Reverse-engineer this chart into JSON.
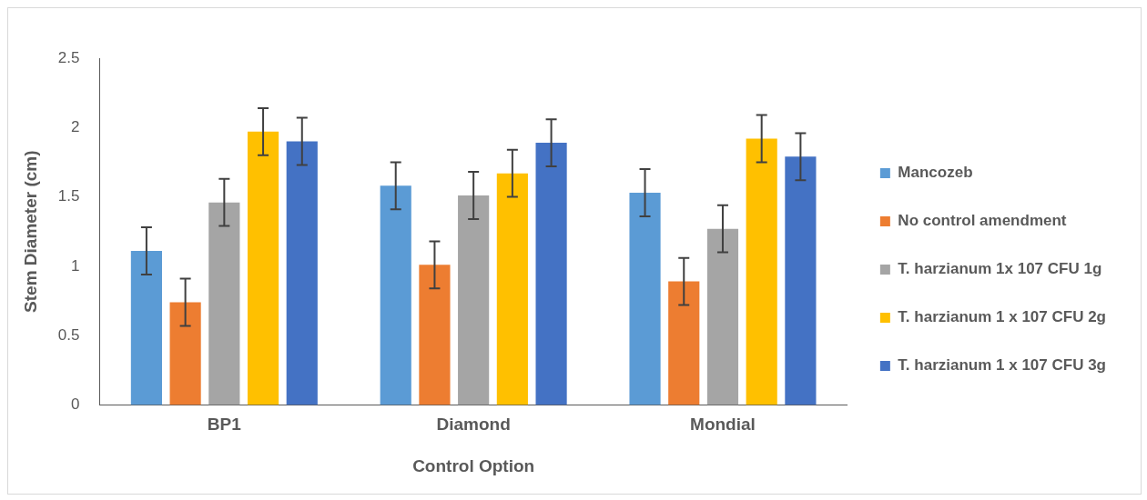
{
  "chart_data": {
    "type": "bar",
    "xlabel": "Control Option",
    "ylabel": "Stem Diameter (cm)",
    "categories": [
      "BP1",
      "Diamond",
      "Mondial"
    ],
    "series": [
      {
        "name": "Mancozeb",
        "color": "#5b9bd5",
        "values": [
          1.11,
          1.58,
          1.53
        ],
        "errors": [
          0.17,
          0.17,
          0.17
        ]
      },
      {
        "name": "No control amendment",
        "color": "#ed7d31",
        "values": [
          0.74,
          1.01,
          0.89
        ],
        "errors": [
          0.17,
          0.17,
          0.17
        ]
      },
      {
        "name": "T. harzianum 1x 107 CFU 1g",
        "color": "#a5a5a5",
        "values": [
          1.46,
          1.51,
          1.27
        ],
        "errors": [
          0.17,
          0.17,
          0.17
        ]
      },
      {
        "name": "T. harzianum 1 x 107 CFU 2g",
        "color": "#ffc000",
        "values": [
          1.97,
          1.67,
          1.92
        ],
        "errors": [
          0.17,
          0.17,
          0.17
        ]
      },
      {
        "name": "T. harzianum 1 x 107 CFU 3g",
        "color": "#4472c4",
        "values": [
          1.9,
          1.89,
          1.79
        ],
        "errors": [
          0.17,
          0.17,
          0.17
        ]
      }
    ],
    "ylim": [
      0,
      2.5
    ],
    "yticks": [
      0,
      0.5,
      1,
      1.5,
      2,
      2.5
    ],
    "grid": false,
    "legend": "right"
  }
}
